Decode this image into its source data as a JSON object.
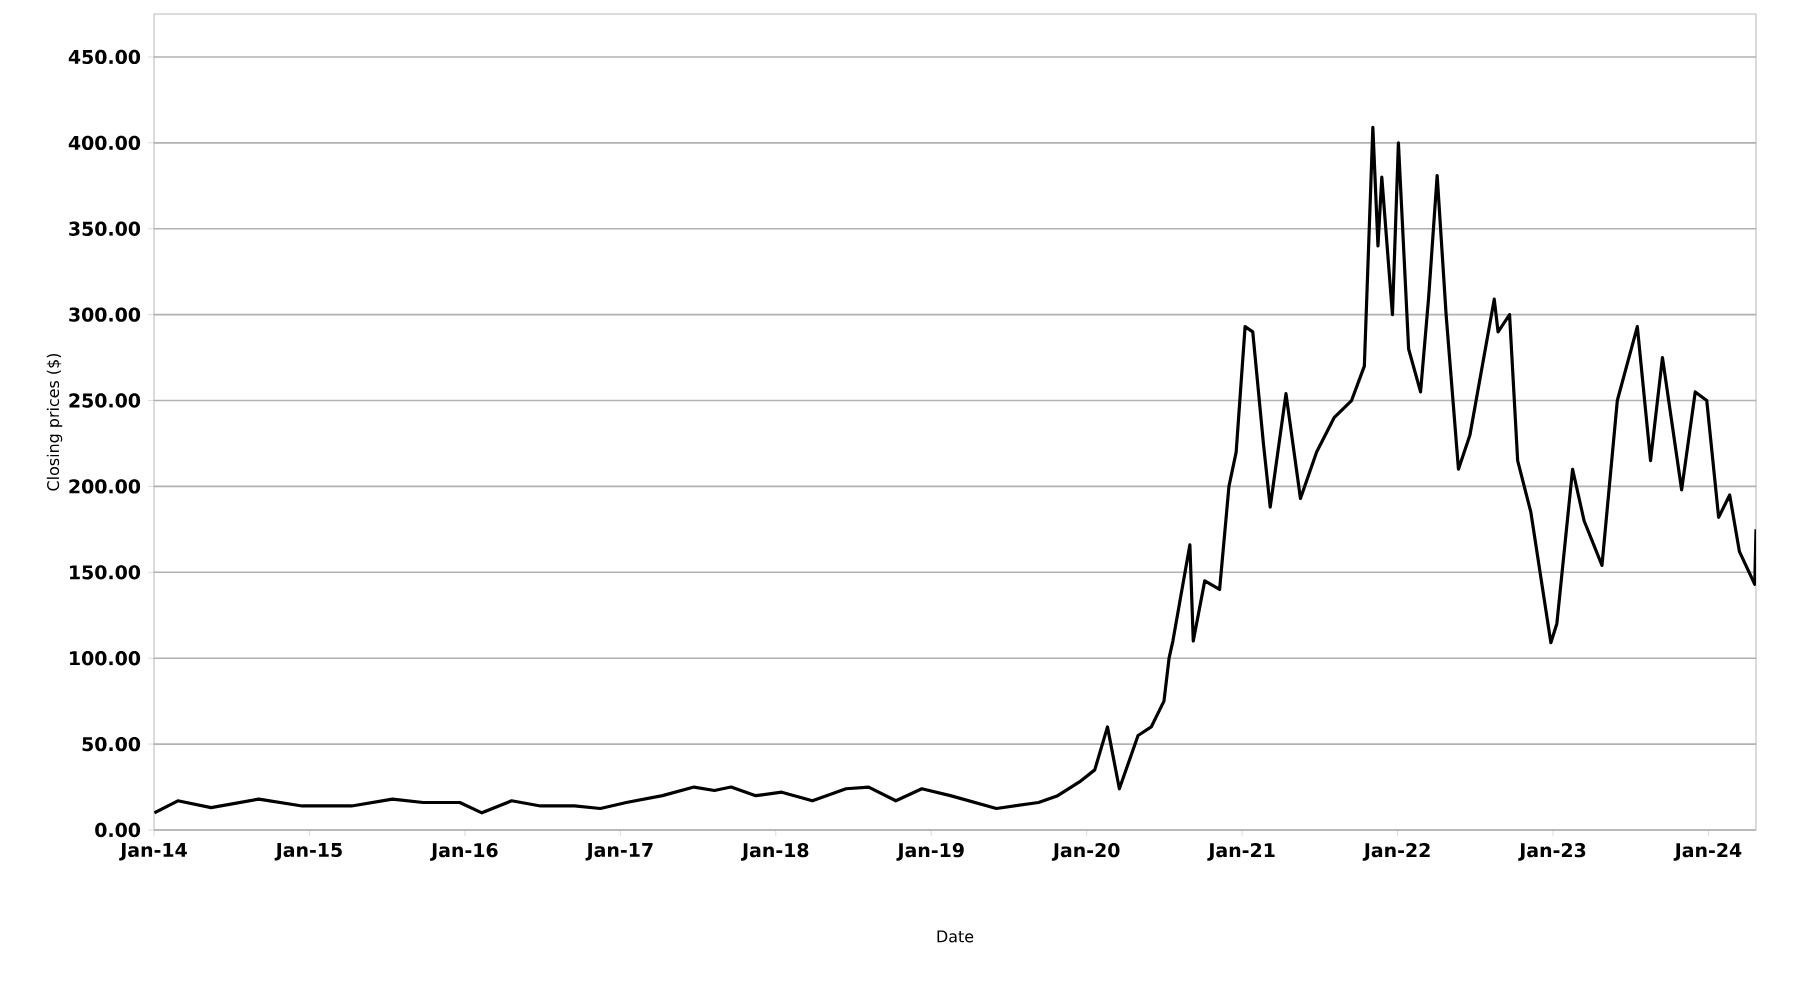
{
  "chart_data": {
    "type": "line",
    "xlabel": "Date",
    "ylabel": "Closing prices ($)",
    "x": [
      "2014-01-02",
      "2014-02-26",
      "2014-05-15",
      "2014-09-04",
      "2014-12-15",
      "2015-04-10",
      "2015-07-15",
      "2015-09-25",
      "2015-12-20",
      "2016-02-10",
      "2016-04-20",
      "2016-06-27",
      "2016-09-15",
      "2016-11-15",
      "2017-01-15",
      "2017-04-10",
      "2017-06-23",
      "2017-08-10",
      "2017-09-18",
      "2017-11-15",
      "2018-01-15",
      "2018-03-28",
      "2018-06-15",
      "2018-08-07",
      "2018-10-10",
      "2018-12-10",
      "2019-02-15",
      "2019-06-03",
      "2019-09-10",
      "2019-10-25",
      "2019-12-15",
      "2020-01-20",
      "2020-02-19",
      "2020-03-18",
      "2020-05-01",
      "2020-06-01",
      "2020-07-01",
      "2020-07-13",
      "2020-07-22",
      "2020-08-31",
      "2020-09-08",
      "2020-10-05",
      "2020-11-09",
      "2020-12-01",
      "2020-12-18",
      "2021-01-08",
      "2021-01-26",
      "2021-02-20",
      "2021-03-08",
      "2021-04-14",
      "2021-05-18",
      "2021-06-25",
      "2021-08-05",
      "2021-09-15",
      "2021-10-15",
      "2021-11-04",
      "2021-11-16",
      "2021-11-25",
      "2021-12-20",
      "2022-01-03",
      "2022-01-27",
      "2022-02-24",
      "2022-03-15",
      "2022-04-04",
      "2022-04-25",
      "2022-05-24",
      "2022-06-20",
      "2022-08-16",
      "2022-08-25",
      "2022-09-21",
      "2022-10-10",
      "2022-11-10",
      "2022-12-27",
      "2023-01-10",
      "2023-02-16",
      "2023-03-15",
      "2023-04-26",
      "2023-06-01",
      "2023-07-18",
      "2023-08-18",
      "2023-09-15",
      "2023-10-30",
      "2023-12-01",
      "2023-12-28",
      "2024-01-25",
      "2024-02-20",
      "2024-03-14",
      "2024-04-19",
      "2024-04-22"
    ],
    "values": [
      10,
      17,
      13,
      18,
      14,
      14,
      18,
      16,
      16,
      10,
      17,
      14,
      14,
      12.5,
      16,
      20,
      25,
      23,
      25,
      20,
      22,
      17,
      24,
      25,
      17,
      24,
      20,
      12.5,
      16,
      20,
      28,
      35,
      60,
      24,
      55,
      60,
      75,
      100,
      110,
      166,
      110,
      145,
      140,
      200,
      220,
      293,
      290,
      225,
      188,
      254,
      193,
      220,
      240,
      250,
      270,
      409,
      340,
      380,
      300,
      400,
      280,
      255,
      310,
      381,
      300,
      210,
      230,
      309,
      290,
      300,
      215,
      185,
      109,
      120,
      210,
      180,
      154,
      250,
      293,
      215,
      275,
      198,
      255,
      250,
      182,
      195,
      162,
      143,
      175
    ],
    "color": "#000000",
    "marker": "none",
    "line_style": "solid",
    "xlim": [
      "2014-01-01",
      "2024-04-22"
    ],
    "xticks": [
      {
        "value": "2014-01-01",
        "label": "Jan-14"
      },
      {
        "value": "2015-01-01",
        "label": "Jan-15"
      },
      {
        "value": "2016-01-01",
        "label": "Jan-16"
      },
      {
        "value": "2017-01-01",
        "label": "Jan-17"
      },
      {
        "value": "2018-01-01",
        "label": "Jan-18"
      },
      {
        "value": "2019-01-01",
        "label": "Jan-19"
      },
      {
        "value": "2020-01-01",
        "label": "Jan-20"
      },
      {
        "value": "2021-01-01",
        "label": "Jan-21"
      },
      {
        "value": "2022-01-01",
        "label": "Jan-22"
      },
      {
        "value": "2023-01-01",
        "label": "Jan-23"
      },
      {
        "value": "2024-01-01",
        "label": "Jan-24"
      }
    ],
    "ylim": [
      0,
      475
    ],
    "yticks": [
      {
        "value": 0,
        "label": "0.00"
      },
      {
        "value": 50,
        "label": "50.00"
      },
      {
        "value": 100,
        "label": "100.00"
      },
      {
        "value": 150,
        "label": "150.00"
      },
      {
        "value": 200,
        "label": "200.00"
      },
      {
        "value": 250,
        "label": "250.00"
      },
      {
        "value": 300,
        "label": "300.00"
      },
      {
        "value": 350,
        "label": "350.00"
      },
      {
        "value": 400,
        "label": "400.00"
      },
      {
        "value": 450,
        "label": "450.00"
      }
    ],
    "grid": "y"
  }
}
